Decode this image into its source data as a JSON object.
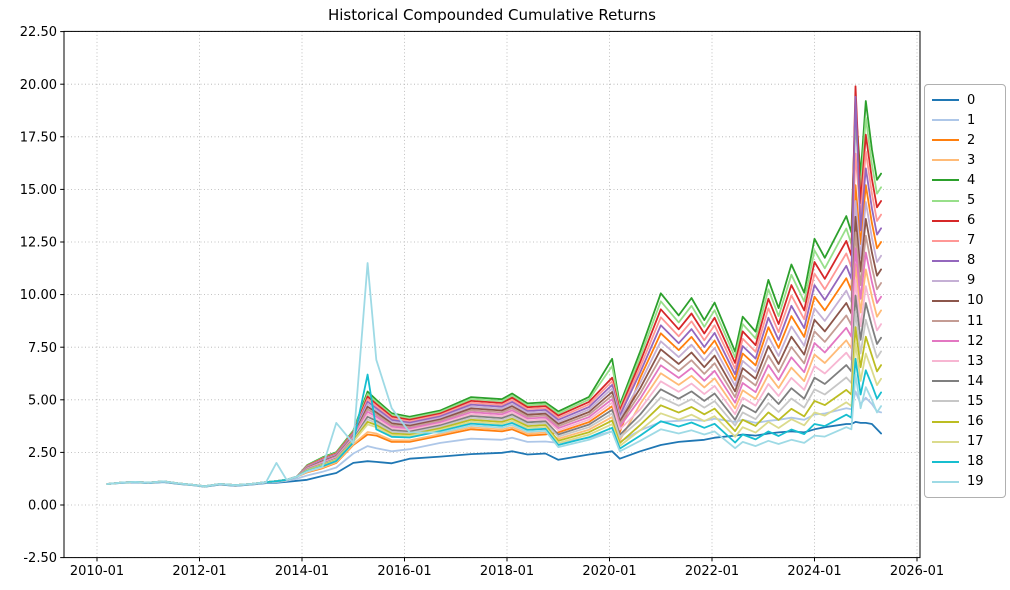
{
  "chart_data": {
    "type": "line",
    "title": "Historical Compounded Cumulative Returns",
    "xlabel": "",
    "ylabel": "",
    "xlim": [
      2009.36,
      2026.06
    ],
    "ylim": [
      -2.5,
      22.5
    ],
    "grid": true,
    "grid_style": "dotted",
    "legend_position": "right outside axes, vertical",
    "x_tick_years": [
      2010,
      2012,
      2014,
      2016,
      2018,
      2020,
      2022,
      2024,
      2026
    ],
    "x_tick_labels": [
      "2010-01",
      "2012-01",
      "2014-01",
      "2016-01",
      "2018-01",
      "2020-01",
      "2022-01",
      "2024-01",
      "2026-01"
    ],
    "y_ticks": [
      -2.5,
      0,
      2.5,
      5,
      7.5,
      10,
      12.5,
      15,
      17.5,
      20,
      22.5
    ],
    "y_tick_labels": [
      "-2.50",
      "0.00",
      "2.50",
      "5.00",
      "7.50",
      "10.00",
      "12.50",
      "15.00",
      "17.50",
      "20.00",
      "22.50"
    ],
    "series_labels": [
      "0",
      "1",
      "2",
      "3",
      "4",
      "5",
      "6",
      "7",
      "8",
      "9",
      "10",
      "11",
      "12",
      "13",
      "14",
      "15",
      "16",
      "17",
      "18",
      "19"
    ],
    "series_colors": [
      "#1f77b4",
      "#aec7e8",
      "#ff7f0e",
      "#ffbb78",
      "#2ca02c",
      "#98df8a",
      "#d62728",
      "#ff9896",
      "#9467bd",
      "#c5b0d5",
      "#8c564b",
      "#c49c94",
      "#e377c2",
      "#f7b6d2",
      "#7f7f7f",
      "#c7c7c7",
      "#bcbd22",
      "#dbdb8d",
      "#17becf",
      "#9edae5"
    ],
    "rows_format": "[decimal_year, series0, series1, ..., series19]",
    "rows": [
      [
        2010.2,
        1.0,
        1.0,
        1.0,
        1.0,
        1.0,
        1.0,
        1.0,
        1.0,
        1.0,
        1.0,
        1.0,
        1.0,
        1.0,
        1.0,
        1.0,
        1.0,
        1.0,
        1.0,
        1.0,
        1.0
      ],
      [
        2010.5,
        1.05,
        1.06,
        1.07,
        1.07,
        1.07,
        1.07,
        1.07,
        1.07,
        1.07,
        1.07,
        1.07,
        1.07,
        1.07,
        1.07,
        1.07,
        1.07,
        1.07,
        1.07,
        1.07,
        1.07
      ],
      [
        2010.75,
        1.08,
        1.09,
        1.1,
        1.1,
        1.1,
        1.1,
        1.1,
        1.1,
        1.1,
        1.1,
        1.1,
        1.1,
        1.1,
        1.1,
        1.1,
        1.1,
        1.1,
        1.1,
        1.1,
        1.1
      ],
      [
        2011.0,
        1.04,
        1.05,
        1.06,
        1.06,
        1.06,
        1.06,
        1.06,
        1.06,
        1.06,
        1.06,
        1.06,
        1.06,
        1.06,
        1.06,
        1.06,
        1.06,
        1.06,
        1.06,
        1.06,
        1.06
      ],
      [
        2011.3,
        1.09,
        1.1,
        1.12,
        1.12,
        1.12,
        1.12,
        1.12,
        1.12,
        1.12,
        1.12,
        1.12,
        1.12,
        1.12,
        1.12,
        1.12,
        1.12,
        1.12,
        1.12,
        1.12,
        1.12
      ],
      [
        2011.6,
        1.0,
        1.01,
        1.02,
        1.02,
        1.02,
        1.02,
        1.02,
        1.02,
        1.02,
        1.02,
        1.02,
        1.02,
        1.02,
        1.02,
        1.02,
        1.02,
        1.02,
        1.02,
        1.02,
        1.02
      ],
      [
        2011.9,
        0.93,
        0.94,
        0.95,
        0.95,
        0.95,
        0.95,
        0.95,
        0.95,
        0.95,
        0.95,
        0.95,
        0.95,
        0.95,
        0.95,
        0.95,
        0.95,
        0.95,
        0.95,
        0.95,
        0.95
      ],
      [
        2012.1,
        0.87,
        0.88,
        0.89,
        0.89,
        0.89,
        0.89,
        0.89,
        0.89,
        0.89,
        0.89,
        0.89,
        0.89,
        0.89,
        0.89,
        0.89,
        0.89,
        0.89,
        0.89,
        0.89,
        0.89
      ],
      [
        2012.4,
        0.97,
        0.98,
        1.0,
        1.0,
        1.0,
        1.0,
        1.0,
        1.0,
        1.0,
        1.0,
        1.0,
        1.0,
        1.0,
        1.0,
        1.0,
        1.0,
        1.0,
        1.0,
        1.0,
        1.0
      ],
      [
        2012.7,
        0.91,
        0.92,
        0.94,
        0.94,
        0.94,
        0.94,
        0.94,
        0.94,
        0.94,
        0.94,
        0.94,
        0.94,
        0.94,
        0.94,
        0.94,
        0.94,
        0.94,
        0.94,
        0.94,
        0.94
      ],
      [
        2013.0,
        0.97,
        0.98,
        1.0,
        1.0,
        1.0,
        1.0,
        1.0,
        1.0,
        1.0,
        1.0,
        1.0,
        1.0,
        1.0,
        1.0,
        1.0,
        1.0,
        1.0,
        1.0,
        1.0,
        1.0
      ],
      [
        2013.3,
        1.04,
        1.06,
        1.09,
        1.09,
        1.09,
        1.09,
        1.09,
        1.09,
        1.09,
        1.09,
        1.09,
        1.09,
        1.09,
        1.09,
        1.09,
        1.09,
        1.09,
        1.09,
        1.09,
        1.09
      ],
      [
        2013.5,
        1.06,
        1.09,
        1.13,
        1.13,
        1.13,
        1.13,
        1.13,
        1.13,
        1.13,
        1.13,
        1.13,
        1.13,
        1.13,
        1.13,
        1.13,
        1.13,
        1.13,
        1.13,
        1.13,
        2.0
      ],
      [
        2013.7,
        1.1,
        1.15,
        1.2,
        1.2,
        1.2,
        1.2,
        1.2,
        1.2,
        1.2,
        1.2,
        1.2,
        1.2,
        1.2,
        1.2,
        1.2,
        1.2,
        1.2,
        1.2,
        1.2,
        1.2
      ],
      [
        2013.9,
        1.15,
        1.25,
        1.35,
        1.35,
        1.35,
        1.35,
        1.35,
        1.35,
        1.35,
        1.35,
        1.35,
        1.35,
        1.35,
        1.35,
        1.35,
        1.35,
        1.35,
        1.35,
        1.35,
        1.35
      ],
      [
        2014.1,
        1.2,
        1.4,
        1.55,
        1.57,
        1.89,
        1.87,
        1.85,
        1.83,
        1.81,
        1.79,
        1.77,
        1.75,
        1.73,
        1.71,
        1.69,
        1.67,
        1.65,
        1.63,
        1.61,
        1.59
      ],
      [
        2014.4,
        1.38,
        1.58,
        1.75,
        1.78,
        2.26,
        2.23,
        2.2,
        2.17,
        2.14,
        2.11,
        2.08,
        2.05,
        2.02,
        1.99,
        1.96,
        1.93,
        1.9,
        1.87,
        1.84,
        1.81
      ],
      [
        2014.67,
        1.52,
        1.78,
        2.0,
        2.03,
        2.51,
        2.48,
        2.45,
        2.42,
        2.39,
        2.36,
        2.33,
        2.3,
        2.27,
        2.24,
        2.21,
        2.18,
        2.15,
        2.12,
        2.09,
        3.9
      ],
      [
        2015.0,
        2.0,
        2.45,
        2.85,
        2.89,
        3.53,
        3.49,
        3.45,
        3.41,
        3.37,
        3.33,
        3.29,
        3.25,
        3.21,
        3.17,
        3.13,
        3.09,
        3.05,
        3.01,
        2.97,
        2.93
      ],
      [
        2015.28,
        2.08,
        2.8,
        3.35,
        3.47,
        5.39,
        5.27,
        5.15,
        5.03,
        4.91,
        4.79,
        4.67,
        4.55,
        4.43,
        4.31,
        4.19,
        4.07,
        3.95,
        3.83,
        6.2,
        11.5
      ],
      [
        2015.45,
        2.05,
        2.7,
        3.3,
        3.4,
        5.0,
        4.9,
        4.8,
        4.7,
        4.6,
        4.5,
        4.4,
        4.3,
        4.2,
        4.1,
        4.0,
        3.9,
        3.8,
        3.7,
        3.6,
        6.9
      ],
      [
        2015.75,
        1.98,
        2.55,
        3.0,
        3.08,
        4.36,
        4.28,
        4.2,
        4.12,
        4.04,
        3.96,
        3.88,
        3.8,
        3.72,
        3.64,
        3.56,
        3.48,
        3.4,
        3.32,
        3.24,
        4.6
      ],
      [
        2016.1,
        2.2,
        2.65,
        3.0,
        3.07,
        4.19,
        4.12,
        4.05,
        3.98,
        3.91,
        3.84,
        3.77,
        3.7,
        3.63,
        3.56,
        3.49,
        3.42,
        3.35,
        3.28,
        3.21,
        3.45
      ],
      [
        2016.7,
        2.3,
        2.95,
        3.3,
        3.37,
        4.49,
        4.42,
        4.35,
        4.28,
        4.21,
        4.14,
        4.07,
        4.0,
        3.93,
        3.86,
        3.79,
        3.72,
        3.65,
        3.58,
        3.51,
        3.44
      ],
      [
        2017.3,
        2.42,
        3.15,
        3.6,
        3.69,
        5.13,
        5.04,
        4.95,
        4.86,
        4.77,
        4.68,
        4.59,
        4.5,
        4.41,
        4.32,
        4.23,
        4.14,
        4.05,
        3.96,
        3.87,
        3.78
      ],
      [
        2017.9,
        2.48,
        3.1,
        3.5,
        3.59,
        5.03,
        4.94,
        4.85,
        4.76,
        4.67,
        4.58,
        4.49,
        4.4,
        4.31,
        4.22,
        4.13,
        4.04,
        3.95,
        3.86,
        3.77,
        3.68
      ],
      [
        2018.1,
        2.55,
        3.2,
        3.6,
        3.7,
        5.3,
        5.2,
        5.1,
        5.0,
        4.9,
        4.8,
        4.7,
        4.6,
        4.5,
        4.4,
        4.3,
        4.2,
        4.1,
        4.0,
        3.9,
        3.8
      ],
      [
        2018.4,
        2.4,
        3.0,
        3.3,
        3.39,
        4.83,
        4.74,
        4.65,
        4.56,
        4.47,
        4.38,
        4.29,
        4.2,
        4.11,
        4.02,
        3.93,
        3.84,
        3.75,
        3.66,
        3.57,
        3.48
      ],
      [
        2018.75,
        2.45,
        3.02,
        3.35,
        3.44,
        4.88,
        4.79,
        4.7,
        4.61,
        4.52,
        4.43,
        4.34,
        4.25,
        4.16,
        4.07,
        3.98,
        3.89,
        3.8,
        3.71,
        3.62,
        3.53
      ],
      [
        2019.0,
        2.15,
        2.95,
        3.45,
        3.15,
        4.45,
        4.35,
        4.25,
        4.15,
        4.05,
        3.95,
        3.85,
        3.75,
        3.65,
        3.55,
        3.35,
        3.25,
        3.05,
        2.95,
        2.85,
        2.75
      ],
      [
        2019.6,
        2.4,
        3.2,
        3.94,
        3.58,
        5.14,
        5.02,
        4.9,
        4.78,
        4.66,
        4.54,
        4.42,
        4.3,
        4.18,
        4.06,
        3.82,
        3.7,
        3.46,
        3.34,
        3.22,
        3.1
      ],
      [
        2020.05,
        2.55,
        3.5,
        4.69,
        4.18,
        6.95,
        6.6,
        6.05,
        5.88,
        5.71,
        5.54,
        5.37,
        5.2,
        5.03,
        4.86,
        4.52,
        4.35,
        4.01,
        3.84,
        3.67,
        3.5
      ],
      [
        2020.2,
        2.2,
        3.0,
        3.46,
        3.07,
        4.76,
        4.63,
        4.5,
        4.37,
        4.24,
        4.11,
        3.98,
        3.85,
        3.72,
        3.59,
        3.33,
        3.2,
        2.94,
        2.81,
        2.68,
        2.55
      ],
      [
        2020.6,
        2.55,
        3.55,
        6.05,
        4.8,
        7.3,
        7.05,
        6.8,
        6.55,
        6.3,
        5.8,
        5.55,
        5.3,
        5.05,
        4.55,
        4.3,
        4.05,
        3.8,
        3.55,
        3.3,
        3.05
      ],
      [
        2021.0,
        2.85,
        3.95,
        8.16,
        6.26,
        10.06,
        9.68,
        9.3,
        8.92,
        8.54,
        7.78,
        7.4,
        7.02,
        6.64,
        5.88,
        5.5,
        5.12,
        4.74,
        4.36,
        3.98,
        3.6
      ],
      [
        2021.35,
        3.0,
        4.0,
        7.36,
        5.71,
        9.01,
        8.68,
        8.35,
        8.02,
        7.69,
        7.03,
        6.7,
        6.37,
        6.04,
        5.38,
        5.05,
        4.72,
        4.39,
        4.06,
        3.73,
        3.4
      ],
      [
        2021.6,
        3.05,
        4.05,
        7.99,
        6.14,
        9.84,
        9.47,
        9.1,
        8.73,
        8.36,
        7.62,
        7.25,
        6.88,
        6.51,
        5.77,
        5.4,
        5.03,
        4.66,
        4.29,
        3.92,
        3.55
      ],
      [
        2021.85,
        3.1,
        4.0,
        7.19,
        5.59,
        8.79,
        8.47,
        8.15,
        7.83,
        7.51,
        6.87,
        6.55,
        6.23,
        5.91,
        5.27,
        4.95,
        4.63,
        4.31,
        3.99,
        3.67,
        3.35
      ],
      [
        2022.05,
        3.2,
        4.1,
        7.82,
        6.02,
        9.62,
        9.26,
        8.9,
        8.54,
        8.18,
        7.46,
        7.1,
        6.74,
        6.38,
        5.66,
        5.3,
        4.94,
        4.58,
        4.22,
        3.86,
        3.5
      ],
      [
        2022.45,
        3.3,
        3.95,
        5.94,
        4.59,
        7.29,
        7.02,
        6.75,
        6.48,
        6.21,
        5.67,
        5.4,
        5.13,
        4.86,
        4.32,
        4.05,
        3.78,
        3.51,
        3.24,
        2.97,
        2.7
      ],
      [
        2022.6,
        3.35,
        4.05,
        7.2,
        5.45,
        8.95,
        8.6,
        8.25,
        7.9,
        7.55,
        6.85,
        6.5,
        6.15,
        5.8,
        5.1,
        4.75,
        4.4,
        4.05,
        3.7,
        3.35,
        3.0
      ],
      [
        2022.85,
        3.3,
        3.9,
        6.64,
        5.04,
        8.24,
        7.92,
        7.6,
        7.28,
        6.96,
        6.32,
        6.0,
        5.68,
        5.36,
        4.72,
        4.4,
        4.08,
        3.76,
        3.44,
        3.12,
        2.8
      ],
      [
        2023.1,
        3.4,
        4.0,
        8.45,
        6.2,
        10.7,
        10.25,
        9.8,
        9.35,
        8.9,
        8.0,
        7.55,
        7.1,
        6.65,
        5.75,
        5.3,
        4.85,
        4.4,
        3.95,
        3.5,
        3.05
      ],
      [
        2023.3,
        3.45,
        4.05,
        7.46,
        5.56,
        9.36,
        8.98,
        8.6,
        8.22,
        7.84,
        7.08,
        6.7,
        6.32,
        5.94,
        5.18,
        4.8,
        4.42,
        4.04,
        3.66,
        3.28,
        2.9
      ],
      [
        2023.55,
        3.5,
        4.15,
        8.98,
        6.53,
        11.43,
        10.94,
        10.45,
        9.96,
        9.47,
        8.49,
        8.0,
        7.51,
        7.02,
        6.04,
        5.55,
        5.06,
        4.57,
        4.08,
        3.59,
        3.1
      ],
      [
        2023.8,
        3.45,
        4.05,
        7.99,
        5.89,
        10.09,
        9.67,
        9.25,
        8.83,
        8.41,
        7.57,
        7.15,
        6.73,
        6.31,
        5.47,
        5.05,
        4.63,
        4.21,
        3.79,
        3.37,
        2.95
      ],
      [
        2024.0,
        3.6,
        4.3,
        9.9,
        7.15,
        12.65,
        12.1,
        11.55,
        11.0,
        10.45,
        9.35,
        8.8,
        8.25,
        7.7,
        6.6,
        6.05,
        5.5,
        4.95,
        4.4,
        3.85,
        3.3
      ],
      [
        2024.2,
        3.7,
        4.35,
        9.25,
        6.75,
        11.75,
        11.25,
        10.75,
        10.25,
        9.75,
        8.75,
        8.25,
        7.75,
        7.25,
        6.25,
        5.75,
        5.25,
        4.75,
        4.25,
        3.75,
        3.25
      ],
      [
        2024.62,
        3.85,
        4.6,
        10.78,
        7.83,
        13.73,
        13.14,
        12.55,
        11.96,
        11.37,
        10.19,
        9.6,
        9.01,
        8.42,
        7.24,
        6.65,
        6.06,
        5.47,
        4.88,
        4.29,
        3.7
      ],
      [
        2024.72,
        3.85,
        4.55,
        10.2,
        7.45,
        12.95,
        12.4,
        11.85,
        11.3,
        10.75,
        9.65,
        9.1,
        8.55,
        8.0,
        6.9,
        6.35,
        5.8,
        5.25,
        4.7,
        4.15,
        3.6
      ],
      [
        2024.8,
        3.95,
        5.4,
        15.2,
        11.45,
        18.95,
        18.2,
        19.9,
        16.7,
        19.4,
        14.45,
        13.7,
        12.95,
        12.2,
        10.7,
        9.95,
        9.2,
        8.45,
        7.7,
        6.95,
        6.2
      ],
      [
        2024.9,
        3.9,
        4.8,
        12.4,
        9.15,
        15.65,
        15.0,
        14.35,
        13.7,
        13.05,
        11.75,
        11.1,
        10.45,
        9.8,
        8.5,
        7.85,
        7.2,
        6.55,
        5.9,
        5.25,
        4.6
      ],
      [
        2025.0,
        3.9,
        5.1,
        15.2,
        11.2,
        19.2,
        18.4,
        17.6,
        16.8,
        16.0,
        14.4,
        13.6,
        12.8,
        12.0,
        10.4,
        9.6,
        8.8,
        8.0,
        7.2,
        6.4,
        5.6
      ],
      [
        2025.12,
        3.85,
        4.8,
        13.4,
        9.9,
        16.9,
        16.2,
        15.5,
        14.8,
        14.1,
        12.7,
        12.0,
        11.3,
        10.6,
        9.2,
        8.5,
        7.8,
        7.1,
        6.4,
        5.7,
        5.0
      ],
      [
        2025.22,
        3.6,
        4.45,
        12.2,
        8.95,
        15.45,
        14.8,
        14.15,
        13.5,
        12.85,
        11.55,
        10.9,
        10.25,
        9.6,
        8.3,
        7.65,
        7.0,
        6.35,
        5.7,
        5.05,
        4.4
      ],
      [
        2025.3,
        3.4,
        4.4,
        12.5,
        9.25,
        15.75,
        15.1,
        14.45,
        13.8,
        13.15,
        11.85,
        11.2,
        10.55,
        9.9,
        8.6,
        7.95,
        7.3,
        6.65,
        6.0,
        5.35,
        4.7
      ]
    ]
  }
}
